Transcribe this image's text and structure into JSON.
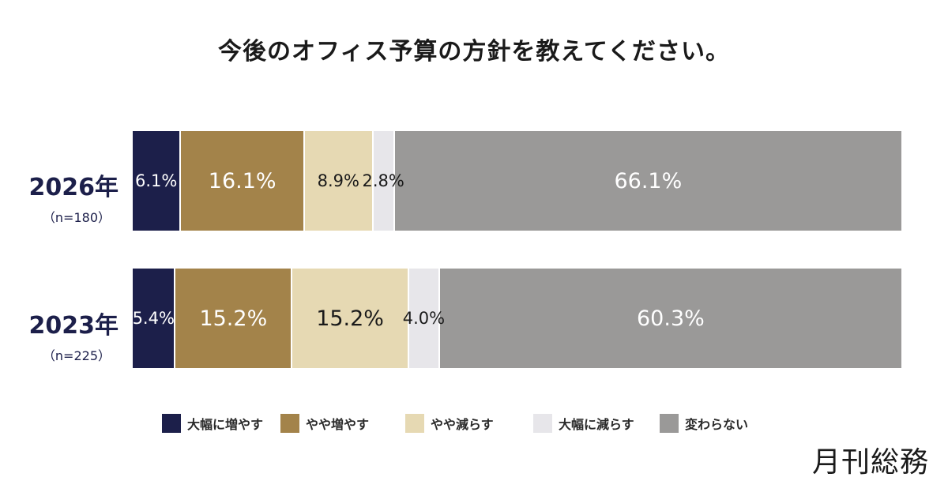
{
  "chart_data": {
    "type": "bar",
    "orientation": "horizontal-stacked-100",
    "title": "今後のオフィス予算の方針を教えてください。",
    "categories": [
      {
        "label": "2026年",
        "n": "（n=180）"
      },
      {
        "label": "2023年",
        "n": "（n=225）"
      }
    ],
    "series": [
      {
        "name": "大幅に増やす",
        "color": "#1c1f4a",
        "text_color": "#ffffff",
        "values": [
          6.1,
          5.4
        ],
        "labels": [
          "6.1%",
          "5.4%"
        ]
      },
      {
        "name": "やや増やす",
        "color": "#a3834a",
        "text_color": "#ffffff",
        "values": [
          16.1,
          15.2
        ],
        "labels": [
          "16.1%",
          "15.2%"
        ]
      },
      {
        "name": "やや減らす",
        "color": "#e6d9b3",
        "text_color": "#1a1a1a",
        "values": [
          8.9,
          15.2
        ],
        "labels": [
          "8.9%",
          "15.2%"
        ]
      },
      {
        "name": "大幅に減らす",
        "color": "#e7e6ea",
        "text_color": "#1a1a1a",
        "values": [
          2.8,
          4.0
        ],
        "labels": [
          "2.8%",
          "4.0%"
        ]
      },
      {
        "name": "変わらない",
        "color": "#9a9998",
        "text_color": "#ffffff",
        "values": [
          66.1,
          60.3
        ],
        "labels": [
          "66.1%",
          "60.3%"
        ]
      }
    ]
  },
  "logo": "月刊総務"
}
